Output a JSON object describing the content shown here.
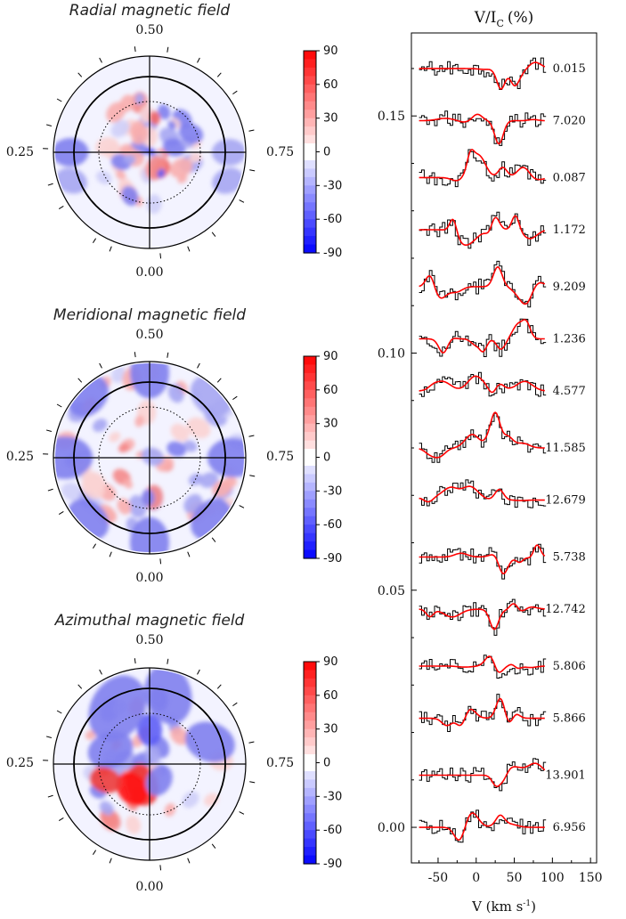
{
  "maps": [
    {
      "title": "Radial magnetic field",
      "phase_top": "0.50",
      "phase_left": "0.25",
      "phase_right": "0.75",
      "phase_bottom": "0.00"
    },
    {
      "title": "Meridional magnetic field",
      "phase_top": "0.50",
      "phase_left": "0.25",
      "phase_right": "0.75",
      "phase_bottom": "0.00"
    },
    {
      "title": "Azimuthal magnetic field",
      "phase_top": "0.50",
      "phase_left": "0.25",
      "phase_right": "0.75",
      "phase_bottom": "0.00"
    }
  ],
  "colorbar": {
    "ticks": [
      "90",
      "60",
      "30",
      "0",
      "-30",
      "-60",
      "-90"
    ],
    "range": [
      -90,
      90
    ],
    "low_color": "#0000ff",
    "mid_color": "#ffffff",
    "high_color": "#ff0000"
  },
  "colors": {
    "observed": "#000000",
    "model": "#ff0000",
    "stellar_disk": "#f3f3ff"
  },
  "chart_data": {
    "type": "line",
    "title": "V/I",
    "title_sub": "C",
    "title_unit": "(%)",
    "xlabel": "V (km s",
    "xlabel_sup": "-1",
    "xlabel_end": ")",
    "xticks": [
      "-50",
      "0",
      "50",
      "100",
      "150"
    ],
    "yticks": [
      "0.00",
      "0.05",
      "0.10",
      "0.15"
    ],
    "xlim": [
      -85,
      158
    ],
    "ylim": [
      -0.0075,
      0.1675
    ],
    "grid": false,
    "profile_x_range": [
      -75,
      90
    ],
    "series": [
      {
        "label": "0.015",
        "offset": 0.16
      },
      {
        "label": "7.020",
        "offset": 0.149
      },
      {
        "label": "0.087",
        "offset": 0.137
      },
      {
        "label": "1.172",
        "offset": 0.126
      },
      {
        "label": "9.209",
        "offset": 0.114
      },
      {
        "label": "1.236",
        "offset": 0.103
      },
      {
        "label": "4.577",
        "offset": 0.092
      },
      {
        "label": "11.585",
        "offset": 0.08
      },
      {
        "label": "12.679",
        "offset": 0.069
      },
      {
        "label": "5.738",
        "offset": 0.057
      },
      {
        "label": "12.742",
        "offset": 0.046
      },
      {
        "label": "5.806",
        "offset": 0.034
      },
      {
        "label": "5.866",
        "offset": 0.023
      },
      {
        "label": "13.901",
        "offset": 0.011
      },
      {
        "label": "6.956",
        "offset": 0.0
      }
    ]
  }
}
